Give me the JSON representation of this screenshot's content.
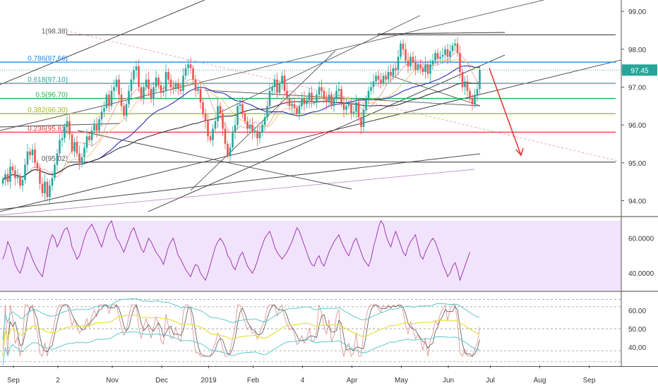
{
  "chart_data": [
    {
      "type": "candlestick",
      "price_axis": {
        "ticks": [
          "99.00",
          "98.00",
          "97.00",
          "96.00",
          "95.00",
          "94.00"
        ],
        "tick_values": [
          99,
          98,
          97,
          96,
          95,
          94
        ],
        "ylim": [
          93.6,
          99.3
        ]
      },
      "current_price": {
        "label": "97.45",
        "value": 97.45,
        "color": "#26a69a"
      },
      "fib_levels": [
        {
          "label": "1(98.38)",
          "value": 98.38,
          "color": "#555555"
        },
        {
          "label": "0.786(97.66)",
          "value": 97.66,
          "color": "#1e88e5"
        },
        {
          "label": "0.618(97.10)",
          "value": 97.1,
          "color": "#26a69a"
        },
        {
          "label": "0.5(96.70)",
          "value": 96.7,
          "color": "#22b14c"
        },
        {
          "label": "0.382(96.30)",
          "value": 96.3,
          "color": "#9cbe1e"
        },
        {
          "label": "0.236(95.81)",
          "value": 95.81,
          "color": "#e53935"
        },
        {
          "label": "0(95.02)",
          "value": 95.02,
          "color": "#555555"
        }
      ],
      "series_closes": [
        94.55,
        94.7,
        94.5,
        94.9,
        94.8,
        94.6,
        94.65,
        94.4,
        94.55,
        94.95,
        95.3,
        95.2,
        95.35,
        95.0,
        94.85,
        94.45,
        94.2,
        94.5,
        94.1,
        94.4,
        94.6,
        94.95,
        95.25,
        95.6,
        95.65,
        95.95,
        96.1,
        95.75,
        95.3,
        95.55,
        95.25,
        95.0,
        95.15,
        95.4,
        95.7,
        95.6,
        95.85,
        96.0,
        95.85,
        96.15,
        96.35,
        96.45,
        96.8,
        96.5,
        96.9,
        97.0,
        97.2,
        96.8,
        96.5,
        96.25,
        96.55,
        96.9,
        97.2,
        97.45,
        97.55,
        97.0,
        96.7,
        97.0,
        97.2,
        96.95,
        96.7,
        97.0,
        97.25,
        97.05,
        96.85,
        96.9,
        97.4,
        97.2,
        97.0,
        96.95,
        97.1,
        96.95,
        96.9,
        97.3,
        97.5,
        97.6,
        97.5,
        97.2,
        96.9,
        96.95,
        96.6,
        96.3,
        96.1,
        95.7,
        95.6,
        95.9,
        96.1,
        96.5,
        96.3,
        95.9,
        95.5,
        95.2,
        95.4,
        95.8,
        96.0,
        96.5,
        96.55,
        96.3,
        96.1,
        95.9,
        96.0,
        95.8,
        95.85,
        95.65,
        95.8,
        96.0,
        96.2,
        96.5,
        96.9,
        97.0,
        97.2,
        96.85,
        97.1,
        97.3,
        96.9,
        96.7,
        96.5,
        96.55,
        96.45,
        96.3,
        96.5,
        96.7,
        96.55,
        96.65,
        96.85,
        96.6,
        96.6,
        96.8,
        97.0,
        96.9,
        96.7,
        96.6,
        96.8,
        96.5,
        96.7,
        96.9,
        96.95,
        96.6,
        96.4,
        96.5,
        96.55,
        96.3,
        96.35,
        96.6,
        96.2,
        95.95,
        96.4,
        96.7,
        96.9,
        97.0,
        97.15,
        97.3,
        97.2,
        97.1,
        97.3,
        97.2,
        97.4,
        97.3,
        97.5,
        97.45,
        97.8,
        98.15,
        98.0,
        97.7,
        97.55,
        97.8,
        97.65,
        97.45,
        97.6,
        97.5,
        97.4,
        97.6,
        97.35,
        97.6,
        97.7,
        97.9,
        97.75,
        97.8,
        97.85,
        98.0,
        97.8,
        97.95,
        98.1,
        98.15,
        97.9,
        97.4,
        97.0,
        97.15,
        96.9,
        96.7,
        96.55,
        96.8,
        96.95,
        97.45
      ],
      "x_axis_labels": [
        "Sep",
        "2",
        "Nov",
        "Dec",
        "2019",
        "Feb",
        "4",
        "Apr",
        "May",
        "Jun",
        "Jul",
        "Aug",
        "Sep"
      ],
      "x_axis_label_index": [
        0,
        18,
        40,
        60,
        79,
        97,
        117,
        137,
        157,
        176,
        193,
        213,
        233
      ],
      "projection": {
        "from": 97.5,
        "to": 95.2,
        "color": "#e53935"
      }
    },
    {
      "type": "line",
      "indicator": "RSI",
      "ticks": [
        "60.0000",
        "40.0000"
      ],
      "tick_values": [
        60,
        40
      ],
      "ylim": [
        30,
        72
      ],
      "band_color": "#f1e3fb",
      "line_color": "#9c27b0",
      "values": [
        48,
        52,
        58,
        55,
        50,
        45,
        42,
        40,
        44,
        50,
        55,
        52,
        48,
        45,
        42,
        40,
        38,
        45,
        52,
        58,
        62,
        60,
        55,
        58,
        62,
        65,
        66,
        62,
        55,
        52,
        48,
        50,
        55,
        60,
        64,
        66,
        68,
        65,
        62,
        58,
        55,
        60,
        65,
        68,
        70,
        65,
        60,
        58,
        55,
        52,
        56,
        60,
        64,
        66,
        62,
        58,
        54,
        52,
        56,
        60,
        58,
        55,
        52,
        50,
        48,
        45,
        50,
        55,
        58,
        60,
        55,
        50,
        48,
        45,
        42,
        40,
        38,
        42,
        45,
        44,
        40,
        38,
        36,
        40,
        45,
        50,
        55,
        58,
        60,
        58,
        55,
        50,
        48,
        44,
        42,
        46,
        50,
        52,
        48,
        44,
        42,
        40,
        43,
        47,
        52,
        56,
        60,
        62,
        64,
        60,
        55,
        52,
        50,
        48,
        50,
        52,
        55,
        58,
        62,
        66,
        64,
        60,
        56,
        52,
        48,
        45,
        44,
        48,
        50,
        46,
        44,
        48,
        52,
        55,
        58,
        60,
        62,
        58,
        55,
        52,
        50,
        54,
        58,
        60,
        56,
        52,
        48,
        46,
        44,
        48,
        55,
        60,
        66,
        70,
        68,
        62,
        58,
        55,
        60,
        64,
        60,
        56,
        52,
        50,
        55,
        58,
        60,
        62,
        56,
        50,
        48,
        52,
        55,
        58,
        60,
        58,
        54,
        50,
        45,
        42,
        38,
        40,
        44,
        46,
        42,
        36,
        40,
        44,
        48,
        52
      ]
    },
    {
      "type": "line",
      "indicator": "Oscillator",
      "ticks": [
        "60.00",
        "50.00",
        "40.00"
      ],
      "tick_values": [
        60,
        50,
        40
      ],
      "ylim": [
        30,
        70
      ]
    }
  ]
}
